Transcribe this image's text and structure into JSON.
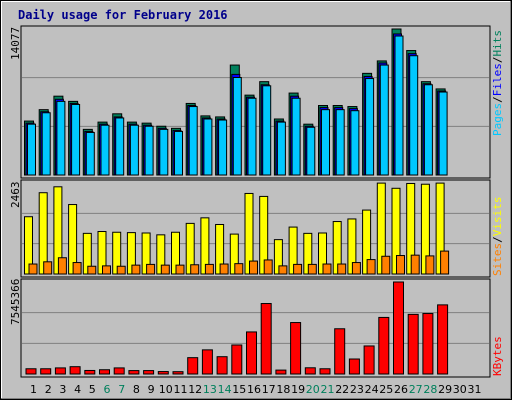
{
  "chart_data": [
    {
      "type": "bar",
      "title": "Daily usage for February 2016",
      "panel": "pages-files-hits",
      "ymax_label": "14077",
      "ylim": [
        0,
        14077
      ],
      "x": [
        "1",
        "2",
        "3",
        "4",
        "5",
        "6",
        "7",
        "8",
        "9",
        "10",
        "11",
        "12",
        "13",
        "14",
        "15",
        "16",
        "17",
        "18",
        "19",
        "20",
        "21",
        "22",
        "23",
        "24",
        "25",
        "26",
        "27",
        "28",
        "29",
        "30",
        "31"
      ],
      "weekend_days": [
        "6",
        "7",
        "13",
        "14",
        "20",
        "21",
        "27",
        "28"
      ],
      "grid": true,
      "series": [
        {
          "name": "Hits",
          "color": "#00805c",
          "values": [
            5200,
            6300,
            7600,
            7100,
            4400,
            5100,
            5900,
            5100,
            5000,
            4700,
            4500,
            6900,
            5700,
            5600,
            10600,
            7700,
            9000,
            5400,
            7900,
            4900,
            6700,
            6700,
            6600,
            9800,
            11000,
            14077,
            12000,
            9000,
            8300,
            0,
            0
          ]
        },
        {
          "name": "Files",
          "color": "#0000ff",
          "values": [
            5000,
            6100,
            7300,
            6900,
            4200,
            4900,
            5600,
            4900,
            4800,
            4500,
            4300,
            6700,
            5500,
            5400,
            9700,
            7500,
            8700,
            5200,
            7600,
            4700,
            6500,
            6500,
            6400,
            9500,
            10800,
            13600,
            11700,
            8800,
            8100,
            0,
            0
          ]
        },
        {
          "name": "Pages",
          "color": "#00c8ff",
          "values": [
            4900,
            6000,
            7100,
            6800,
            4100,
            4800,
            5500,
            4800,
            4700,
            4400,
            4200,
            6600,
            5400,
            5300,
            9400,
            7400,
            8600,
            5100,
            7400,
            4600,
            6300,
            6300,
            6200,
            9300,
            10600,
            13400,
            11500,
            8700,
            8000,
            0,
            0
          ]
        }
      ],
      "side_labels": [
        "Pages",
        "Files",
        "Hits"
      ]
    },
    {
      "type": "bar",
      "panel": "visits-sites",
      "ymax_label": "2463",
      "ylim": [
        0,
        2463
      ],
      "x": [
        "1",
        "2",
        "3",
        "4",
        "5",
        "6",
        "7",
        "8",
        "9",
        "10",
        "11",
        "12",
        "13",
        "14",
        "15",
        "16",
        "17",
        "18",
        "19",
        "20",
        "21",
        "22",
        "23",
        "24",
        "25",
        "26",
        "27",
        "28",
        "29",
        "30",
        "31"
      ],
      "series": [
        {
          "name": "Visits",
          "color": "#ffff00",
          "values": [
            1550,
            2200,
            2360,
            1880,
            1100,
            1150,
            1130,
            1120,
            1110,
            1060,
            1130,
            1370,
            1520,
            1340,
            1080,
            2180,
            2100,
            930,
            1270,
            1100,
            1110,
            1420,
            1490,
            1730,
            2460,
            2320,
            2450,
            2430,
            2460,
            0,
            0
          ]
        },
        {
          "name": "Sites",
          "color": "#ff8000",
          "values": [
            270,
            330,
            440,
            310,
            210,
            220,
            210,
            240,
            260,
            240,
            240,
            250,
            260,
            270,
            280,
            350,
            380,
            220,
            260,
            260,
            270,
            270,
            310,
            390,
            480,
            500,
            510,
            490,
            620,
            0,
            0
          ]
        }
      ],
      "side_labels": [
        "Sites",
        "Visits"
      ]
    },
    {
      "type": "bar",
      "panel": "kbytes",
      "ymax_label": "7545366",
      "ylim": [
        0,
        7545366
      ],
      "x": [
        "1",
        "2",
        "3",
        "4",
        "5",
        "6",
        "7",
        "8",
        "9",
        "10",
        "11",
        "12",
        "13",
        "14",
        "15",
        "16",
        "17",
        "18",
        "19",
        "20",
        "21",
        "22",
        "23",
        "24",
        "25",
        "26",
        "27",
        "28",
        "29",
        "30",
        "31"
      ],
      "series": [
        {
          "name": "KBytes",
          "color": "#ff0000",
          "values": [
            430000,
            430000,
            500000,
            600000,
            290000,
            350000,
            500000,
            280000,
            280000,
            200000,
            190000,
            1340000,
            1980000,
            1420000,
            2380000,
            3450000,
            5780000,
            320000,
            4220000,
            510000,
            430000,
            3710000,
            1230000,
            2300000,
            4640000,
            7545366,
            4890000,
            4960000,
            5670000,
            0,
            0
          ]
        }
      ],
      "side_labels": [
        "KBytes"
      ]
    }
  ]
}
